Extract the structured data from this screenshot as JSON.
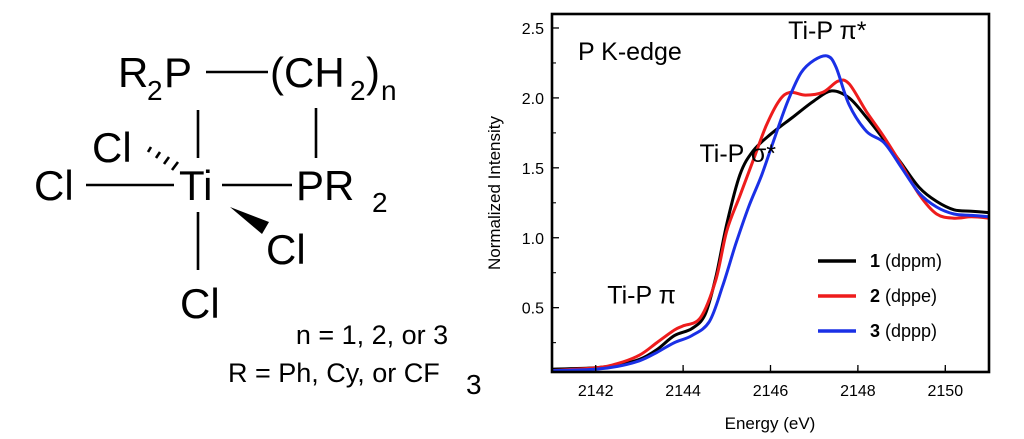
{
  "structure": {
    "row1": {
      "r": "R",
      "r_sub": "2",
      "p": "P",
      "ch_open": "(CH",
      "h_sub": "2",
      "close": ")",
      "n": "n"
    },
    "cl_top_left": "Cl",
    "cl_left": "Cl",
    "ti": "Ti",
    "pr2": {
      "p": "PR",
      "sub": "2"
    },
    "cl_wedge": "Cl",
    "cl_bottom": "Cl",
    "conditions": {
      "n_line": "n = 1, 2, or 3",
      "r_line": "R = Ph, Cy, or CF",
      "r_line_sub": "3"
    }
  },
  "chart_data": {
    "type": "line",
    "title": "P K-edge",
    "xlabel": "Energy (eV)",
    "ylabel": "Normalized Intensity",
    "xlim": [
      2141,
      2151
    ],
    "ylim": [
      0.04,
      2.6
    ],
    "xticks": [
      2142,
      2144,
      2146,
      2148,
      2150
    ],
    "yticks": [
      0.5,
      1.0,
      1.5,
      2.0,
      2.5
    ],
    "xtick_labels": [
      "2142",
      "2144",
      "2146",
      "2148",
      "2150"
    ],
    "ytick_labels": [
      "0.5",
      "1.0",
      "1.5",
      "2.0",
      "2.5"
    ],
    "annotations": [
      {
        "label": "Ti-P σ*",
        "x": 2145.25,
        "y": 1.54
      },
      {
        "label": "Ti-P π*",
        "x": 2147.3,
        "y": 2.42
      },
      {
        "label": "Ti-P π",
        "x": 2143.05,
        "y": 0.53
      }
    ],
    "legend": {
      "placement": "bottom-right"
    },
    "series": [
      {
        "name": "1",
        "label_num": "1",
        "label_rest": " (dppm)",
        "color": "#000000",
        "x": [
          2141,
          2142,
          2142.5,
          2143,
          2143.4,
          2143.8,
          2144.2,
          2144.5,
          2144.75,
          2145,
          2145.3,
          2145.6,
          2146,
          2146.5,
          2147,
          2147.4,
          2147.8,
          2148.2,
          2148.6,
          2149,
          2149.4,
          2149.8,
          2150.2,
          2150.6,
          2151
        ],
        "y": [
          0.06,
          0.07,
          0.09,
          0.13,
          0.2,
          0.3,
          0.35,
          0.45,
          0.72,
          1.1,
          1.45,
          1.62,
          1.74,
          1.86,
          1.98,
          2.05,
          2.0,
          1.86,
          1.7,
          1.53,
          1.36,
          1.26,
          1.2,
          1.19,
          1.18
        ]
      },
      {
        "name": "2",
        "label_num": "2",
        "label_rest": " (dppe)",
        "color": "#ee1c1c",
        "x": [
          2141,
          2142,
          2142.5,
          2143,
          2143.4,
          2143.8,
          2144,
          2144.4,
          2144.75,
          2145,
          2145.3,
          2145.6,
          2145.9,
          2146.2,
          2146.45,
          2146.8,
          2147.2,
          2147.55,
          2147.8,
          2148.2,
          2148.6,
          2149,
          2149.4,
          2149.8,
          2150.2,
          2150.6,
          2151
        ],
        "y": [
          0.05,
          0.07,
          0.1,
          0.16,
          0.25,
          0.34,
          0.37,
          0.43,
          0.7,
          1.05,
          1.3,
          1.55,
          1.8,
          1.98,
          2.04,
          2.02,
          2.04,
          2.12,
          2.1,
          1.9,
          1.72,
          1.52,
          1.31,
          1.17,
          1.14,
          1.15,
          1.14
        ]
      },
      {
        "name": "3",
        "label_num": "3",
        "label_rest": " (dppp)",
        "color": "#1a30e6",
        "x": [
          2141,
          2142,
          2142.5,
          2143,
          2143.4,
          2143.8,
          2144.2,
          2144.6,
          2144.9,
          2145.2,
          2145.5,
          2145.8,
          2146.1,
          2146.4,
          2146.7,
          2147,
          2147.3,
          2147.5,
          2147.8,
          2148.2,
          2148.6,
          2149,
          2149.4,
          2149.8,
          2150.2,
          2150.6,
          2151
        ],
        "y": [
          0.05,
          0.06,
          0.08,
          0.12,
          0.18,
          0.25,
          0.3,
          0.4,
          0.65,
          0.95,
          1.22,
          1.45,
          1.72,
          1.98,
          2.18,
          2.27,
          2.3,
          2.22,
          1.95,
          1.76,
          1.68,
          1.5,
          1.32,
          1.22,
          1.17,
          1.16,
          1.15
        ]
      }
    ]
  }
}
